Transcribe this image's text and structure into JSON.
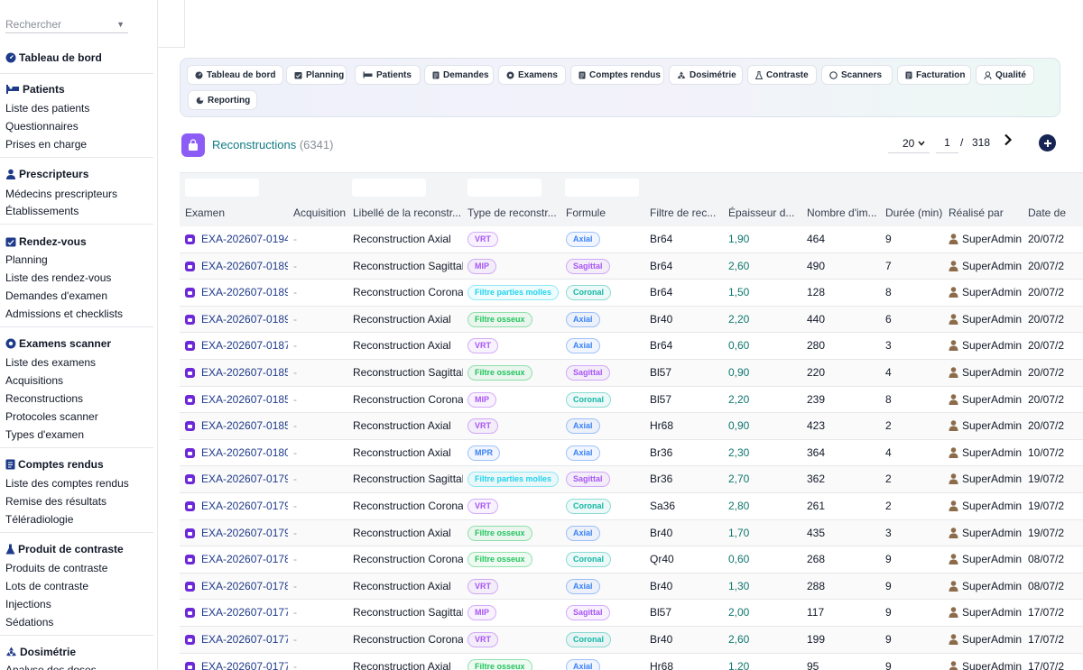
{
  "search": {
    "placeholder": "Rechercher"
  },
  "sidebar": {
    "dashboard": "Tableau de bord",
    "sections": [
      {
        "title": "Patients",
        "items": [
          "Liste des patients",
          "Questionnaires",
          "Prises en charge"
        ]
      },
      {
        "title": "Prescripteurs",
        "items": [
          "Médecins prescripteurs",
          "Établissements"
        ]
      },
      {
        "title": "Rendez-vous",
        "items": [
          "Planning",
          "Liste des rendez-vous",
          "Demandes d'examen",
          "Admissions et checklists"
        ]
      },
      {
        "title": "Examens scanner",
        "items": [
          "Liste des examens",
          "Acquisitions",
          "Reconstructions",
          "Protocoles scanner",
          "Types d'examen"
        ]
      },
      {
        "title": "Comptes rendus",
        "items": [
          "Liste des comptes rendus",
          "Remise des résultats",
          "Téléradiologie"
        ]
      },
      {
        "title": "Produit de contraste",
        "items": [
          "Produits de contraste",
          "Lots de contraste",
          "Injections",
          "Sédations"
        ]
      },
      {
        "title": "Dosimétrie",
        "items": [
          "Analyse des doses"
        ]
      }
    ]
  },
  "tabs": [
    "Tableau de bord",
    "Planning",
    "Patients",
    "Demandes",
    "Examens",
    "Comptes rendus",
    "Dosimétrie",
    "Contraste",
    "Scanners",
    "Facturation",
    "Qualité",
    "Reporting"
  ],
  "header": {
    "title": "Reconstructions",
    "count": "(6341)"
  },
  "pager": {
    "page_size": "20",
    "page": "1",
    "separator": "/",
    "total": "318"
  },
  "columns": [
    "Examen",
    "Acquisition",
    "Libellé de la reconstr...",
    "Type de reconstr...",
    "Formule",
    "Filtre de rec...",
    "Épaisseur d...",
    "Nombre d'im...",
    "Durée (min)",
    "Réalisé par",
    "Date de"
  ],
  "rows": [
    {
      "exam": "EXA-202607-0194",
      "acq": "-",
      "label": "Reconstruction Axial",
      "type": "VRT",
      "formula": "Axial",
      "filter": "Br64",
      "thickness": "1,90",
      "images": "464",
      "duration": "9",
      "user": "SuperAdmin",
      "date": "20/07/2"
    },
    {
      "exam": "EXA-202607-0189",
      "acq": "-",
      "label": "Reconstruction Sagittal",
      "type": "MIP",
      "formula": "Sagittal",
      "filter": "Br64",
      "thickness": "2,60",
      "images": "490",
      "duration": "7",
      "user": "SuperAdmin",
      "date": "20/07/2"
    },
    {
      "exam": "EXA-202607-0189",
      "acq": "-",
      "label": "Reconstruction Coronal",
      "type": "Filtre parties molles",
      "formula": "Coronal",
      "filter": "Br64",
      "thickness": "1,50",
      "images": "128",
      "duration": "8",
      "user": "SuperAdmin",
      "date": "20/07/2"
    },
    {
      "exam": "EXA-202607-0189",
      "acq": "-",
      "label": "Reconstruction Axial",
      "type": "Filtre osseux",
      "formula": "Axial",
      "filter": "Br40",
      "thickness": "2,20",
      "images": "440",
      "duration": "6",
      "user": "SuperAdmin",
      "date": "20/07/2"
    },
    {
      "exam": "EXA-202607-0187",
      "acq": "-",
      "label": "Reconstruction Axial",
      "type": "VRT",
      "formula": "Axial",
      "filter": "Br64",
      "thickness": "0,60",
      "images": "280",
      "duration": "3",
      "user": "SuperAdmin",
      "date": "20/07/2"
    },
    {
      "exam": "EXA-202607-0185",
      "acq": "-",
      "label": "Reconstruction Sagittal",
      "type": "Filtre osseux",
      "formula": "Sagittal",
      "filter": "Bl57",
      "thickness": "0,90",
      "images": "220",
      "duration": "4",
      "user": "SuperAdmin",
      "date": "20/07/2"
    },
    {
      "exam": "EXA-202607-0185",
      "acq": "-",
      "label": "Reconstruction Coronal",
      "type": "MIP",
      "formula": "Coronal",
      "filter": "Bl57",
      "thickness": "2,20",
      "images": "239",
      "duration": "8",
      "user": "SuperAdmin",
      "date": "20/07/2"
    },
    {
      "exam": "EXA-202607-0185",
      "acq": "-",
      "label": "Reconstruction Axial",
      "type": "VRT",
      "formula": "Axial",
      "filter": "Hr68",
      "thickness": "0,90",
      "images": "423",
      "duration": "2",
      "user": "SuperAdmin",
      "date": "20/07/2"
    },
    {
      "exam": "EXA-202607-0180",
      "acq": "-",
      "label": "Reconstruction Axial",
      "type": "MPR",
      "formula": "Axial",
      "filter": "Br36",
      "thickness": "2,30",
      "images": "364",
      "duration": "4",
      "user": "SuperAdmin",
      "date": "10/07/2"
    },
    {
      "exam": "EXA-202607-0179",
      "acq": "-",
      "label": "Reconstruction Sagittal",
      "type": "Filtre parties molles",
      "formula": "Sagittal",
      "filter": "Br36",
      "thickness": "2,70",
      "images": "362",
      "duration": "2",
      "user": "SuperAdmin",
      "date": "19/07/2"
    },
    {
      "exam": "EXA-202607-0179",
      "acq": "-",
      "label": "Reconstruction Coronal",
      "type": "VRT",
      "formula": "Coronal",
      "filter": "Sa36",
      "thickness": "2,80",
      "images": "261",
      "duration": "2",
      "user": "SuperAdmin",
      "date": "19/07/2"
    },
    {
      "exam": "EXA-202607-0179",
      "acq": "-",
      "label": "Reconstruction Axial",
      "type": "Filtre osseux",
      "formula": "Axial",
      "filter": "Br40",
      "thickness": "1,70",
      "images": "435",
      "duration": "3",
      "user": "SuperAdmin",
      "date": "19/07/2"
    },
    {
      "exam": "EXA-202607-0178",
      "acq": "-",
      "label": "Reconstruction Coronal",
      "type": "Filtre osseux",
      "formula": "Coronal",
      "filter": "Qr40",
      "thickness": "0,60",
      "images": "268",
      "duration": "9",
      "user": "SuperAdmin",
      "date": "08/07/2"
    },
    {
      "exam": "EXA-202607-0178",
      "acq": "-",
      "label": "Reconstruction Axial",
      "type": "VRT",
      "formula": "Axial",
      "filter": "Br40",
      "thickness": "1,30",
      "images": "288",
      "duration": "9",
      "user": "SuperAdmin",
      "date": "08/07/2"
    },
    {
      "exam": "EXA-202607-0177",
      "acq": "-",
      "label": "Reconstruction Sagittal",
      "type": "MIP",
      "formula": "Sagittal",
      "filter": "Bl57",
      "thickness": "2,00",
      "images": "117",
      "duration": "9",
      "user": "SuperAdmin",
      "date": "17/07/2"
    },
    {
      "exam": "EXA-202607-0177",
      "acq": "-",
      "label": "Reconstruction Coronal",
      "type": "VRT",
      "formula": "Coronal",
      "filter": "Br40",
      "thickness": "2,60",
      "images": "199",
      "duration": "9",
      "user": "SuperAdmin",
      "date": "17/07/2"
    },
    {
      "exam": "EXA-202607-0177",
      "acq": "-",
      "label": "Reconstruction Axial",
      "type": "Filtre osseux",
      "formula": "Axial",
      "filter": "Hr68",
      "thickness": "1,20",
      "images": "95",
      "duration": "9",
      "user": "SuperAdmin",
      "date": "17/07/2"
    }
  ],
  "pill_colors": {
    "VRT": "#a855f7",
    "MIP": "#a855f7",
    "MPR": "#3b82f6",
    "Filtre parties molles": "#22d3ee",
    "Filtre osseux": "#22c55e",
    "Axial": "#3b82f6",
    "Sagittal": "#a855f7",
    "Coronal": "#14b8a6"
  }
}
